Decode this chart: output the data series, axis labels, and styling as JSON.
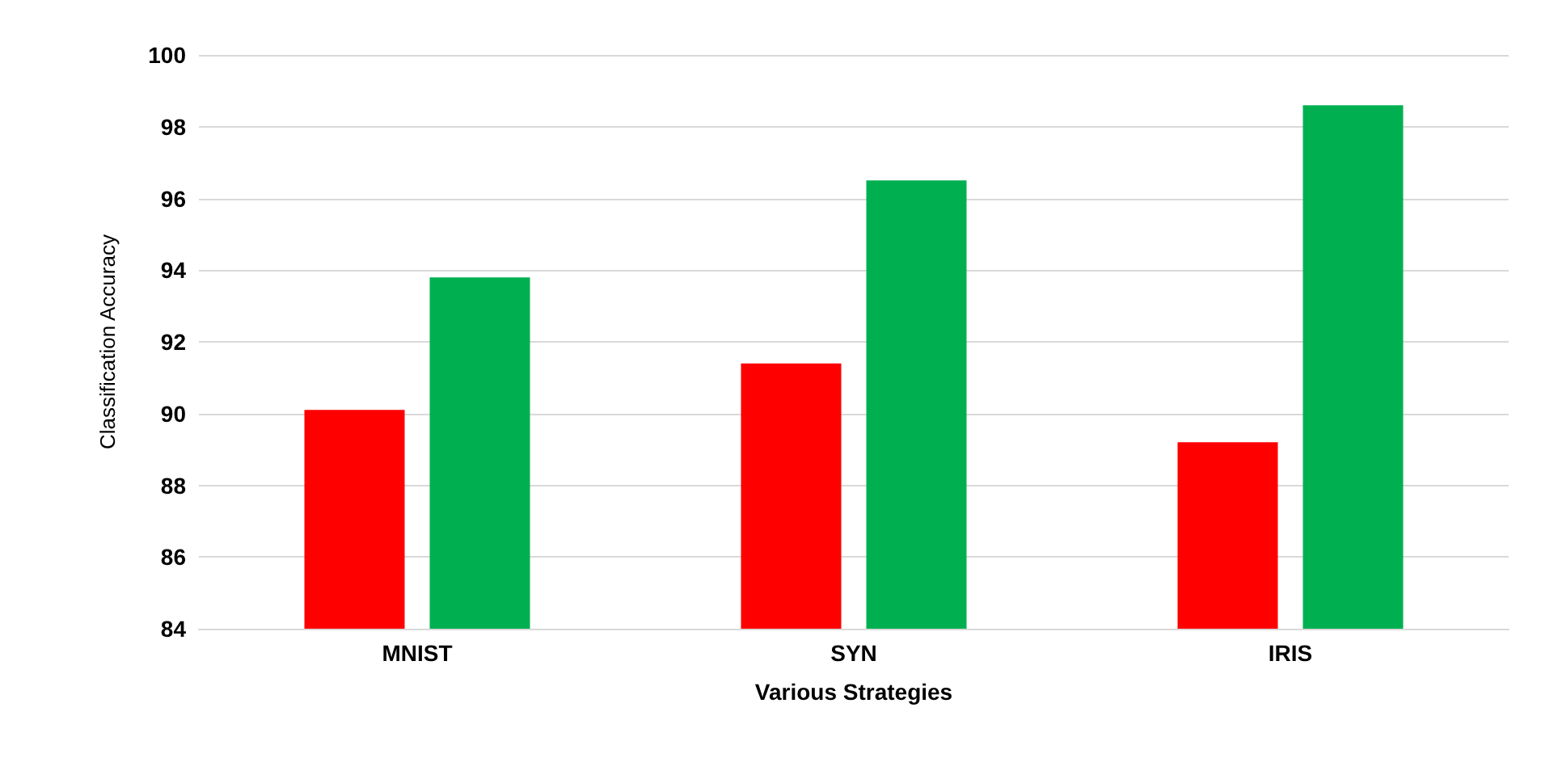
{
  "chart_data": {
    "type": "bar",
    "xlabel": "Various Strategies",
    "ylabel": "Classification Accuracy",
    "categories": [
      "MNIST",
      "SYN",
      "IRIS"
    ],
    "series": [
      {
        "color": "#ff0000",
        "values": [
          90.1,
          91.4,
          89.2
        ]
      },
      {
        "color": "#00b050",
        "values": [
          93.8,
          96.5,
          98.6
        ]
      }
    ],
    "ylim": [
      84,
      100
    ],
    "yticks": [
      84,
      86,
      88,
      90,
      92,
      94,
      96,
      98,
      100
    ],
    "grid": "y"
  }
}
